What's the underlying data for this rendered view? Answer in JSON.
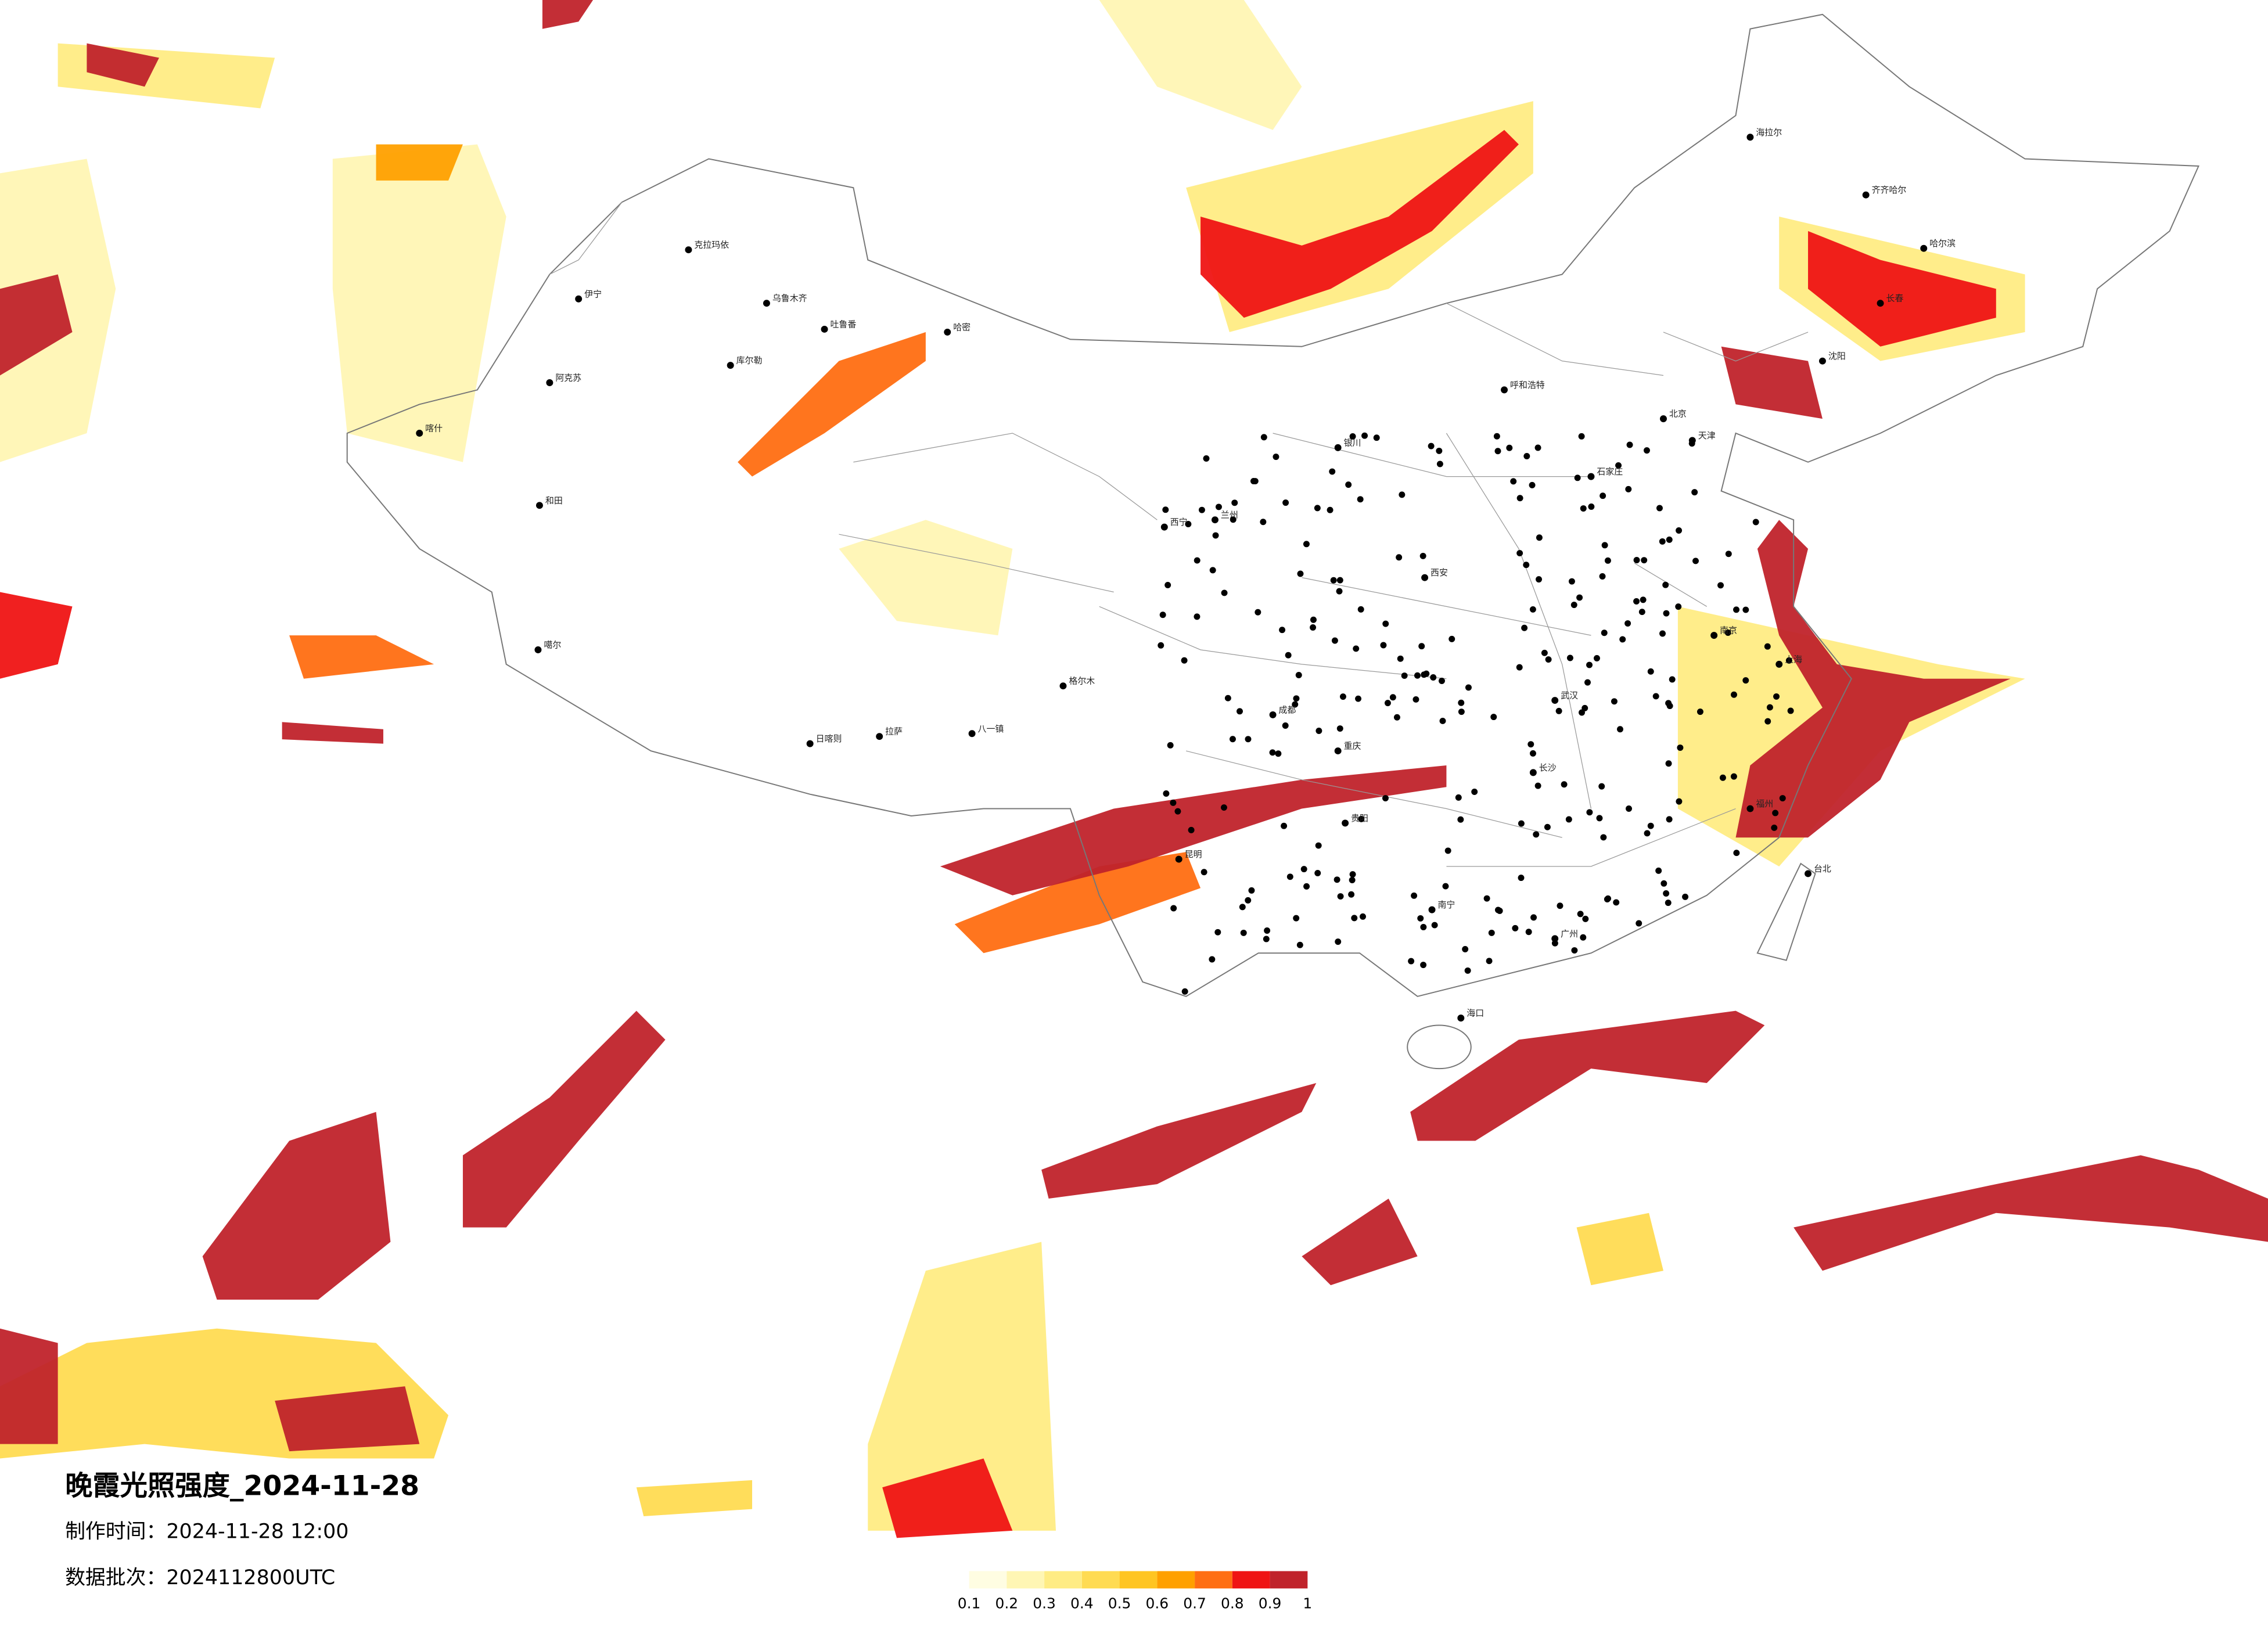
{
  "header": {
    "title": "晚霞光照强度_2024-11-28",
    "made_time": "制作时间：2024-11-28 12:00",
    "batch": "数据批次：2024112800UTC"
  },
  "legend": {
    "ticks": [
      0.1,
      0.2,
      0.3,
      0.4,
      0.5,
      0.6,
      0.7,
      0.8,
      0.9,
      1
    ],
    "colors": [
      "#fffde2",
      "#fff6b4",
      "#ffec84",
      "#ffdb52",
      "#ffc522",
      "#ffa000",
      "#ff6e12",
      "#ef1414",
      "#c0232b"
    ]
  },
  "cities": [
    "克拉玛依",
    "乌鲁木齐",
    "吐鲁番",
    "哈密",
    "库尔勒",
    "阿克苏",
    "喀什",
    "和田",
    "伊宁",
    "噶尔",
    "日喀则",
    "拉萨",
    "八一镇",
    "格尔木",
    "海拉尔",
    "齐齐哈尔",
    "哈尔滨",
    "长春",
    "沈阳",
    "北京",
    "天津",
    "石家庄",
    "呼和浩特",
    "银川",
    "兰州",
    "西宁",
    "西安",
    "成都",
    "重庆",
    "昆明",
    "贵阳",
    "南宁",
    "广州",
    "海口",
    "台北",
    "上海",
    "南京",
    "武汉",
    "长沙",
    "福州"
  ]
}
